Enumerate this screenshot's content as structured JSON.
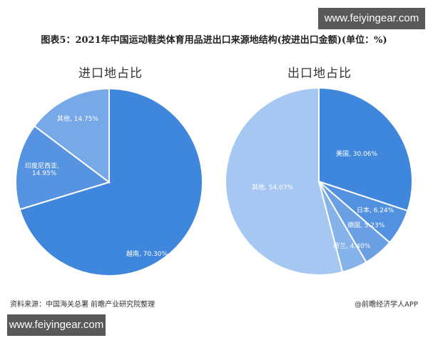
{
  "watermark_top": "www.feiyingear.com",
  "watermark_bottom": "www.feiyingear.com",
  "title": "图表5：2021年中国运动鞋类体育用品进出口来源地结构(按进出口金额)(单位：%)",
  "footer": {
    "source": "资料来源：中国海关总署 前瞻产业研究院整理",
    "brand": "@前瞻经济学人APP"
  },
  "labels": {
    "import": [
      "越南, 70.30%",
      "印度尼西亚,",
      "14.95%",
      "其他, 14.75%"
    ],
    "export": [
      "美国, 30.06%",
      "日本, 6.24%",
      "德国, 5.23%",
      "荷兰, 4.40%",
      "其他, 54.07%"
    ]
  },
  "chart_data": [
    {
      "type": "pie",
      "title": "进口地占比",
      "categories": [
        "越南",
        "印度尼西亚",
        "其他"
      ],
      "values": [
        70.3,
        14.95,
        14.75
      ],
      "colors": [
        "#3f86dd",
        "#5693e0",
        "#77a9e8"
      ],
      "unit": "%",
      "start_angle": "12 o'clock, clockwise",
      "legend": "none (inline data labels)"
    },
    {
      "type": "pie",
      "title": "出口地占比",
      "categories": [
        "美国",
        "日本",
        "德国",
        "荷兰",
        "其他"
      ],
      "values": [
        30.06,
        6.24,
        5.23,
        4.4,
        54.07
      ],
      "colors": [
        "#3f86dd",
        "#5291e0",
        "#6a9fe4",
        "#86b2ea",
        "#a5c7f2"
      ],
      "unit": "%",
      "start_angle": "12 o'clock, clockwise",
      "legend": "none (inline data labels)"
    }
  ]
}
